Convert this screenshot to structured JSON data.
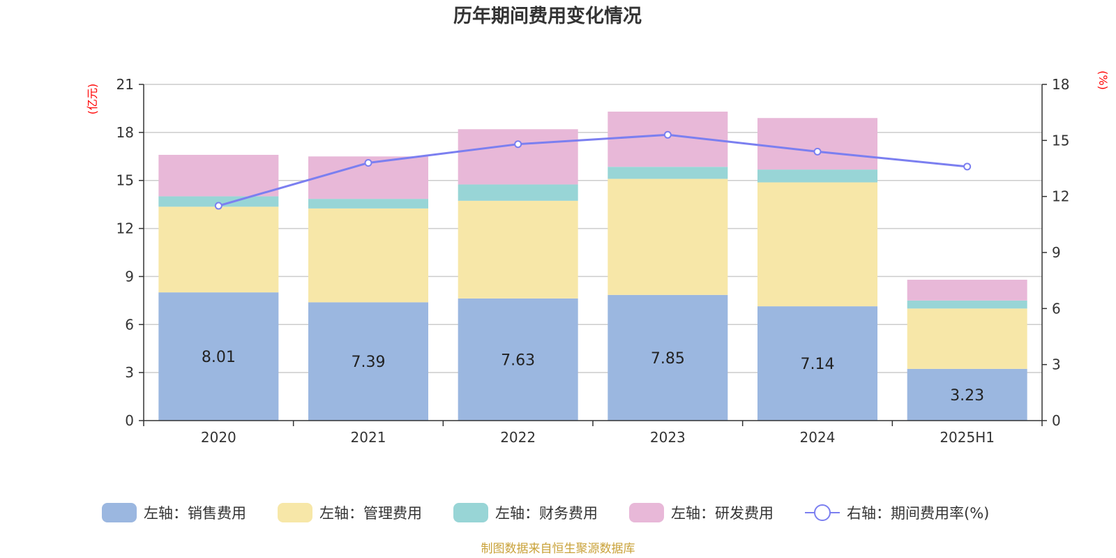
{
  "chart_data": {
    "type": "bar",
    "title": "历年期间费用变化情况",
    "categories": [
      "2020",
      "2021",
      "2022",
      "2023",
      "2024",
      "2025H1"
    ],
    "left_axis": {
      "unit": "(亿元)",
      "min": 0,
      "max": 21,
      "step": 3,
      "ticks": [
        "0",
        "3",
        "6",
        "9",
        "12",
        "15",
        "18",
        "21"
      ]
    },
    "right_axis": {
      "unit": "(%)",
      "min": 0,
      "max": 18,
      "step": 3,
      "ticks": [
        "0",
        "3",
        "6",
        "9",
        "12",
        "15",
        "18"
      ]
    },
    "series": [
      {
        "name": "左轴：销售费用",
        "type": "bar",
        "axis": "left",
        "color": "#9bb7e0",
        "values": [
          8.01,
          7.39,
          7.63,
          7.85,
          7.14,
          3.23
        ],
        "labels": [
          "8.01",
          "7.39",
          "7.63",
          "7.85",
          "7.14",
          "3.23"
        ]
      },
      {
        "name": "左轴：管理费用",
        "type": "bar",
        "axis": "left",
        "color": "#f7e7a8",
        "values": [
          5.35,
          5.86,
          6.1,
          7.25,
          7.74,
          3.77
        ]
      },
      {
        "name": "左轴：财务费用",
        "type": "bar",
        "axis": "left",
        "color": "#98d5d6",
        "values": [
          0.65,
          0.6,
          1.02,
          0.75,
          0.8,
          0.5
        ]
      },
      {
        "name": "左轴：研发费用",
        "type": "bar",
        "axis": "left",
        "color": "#e8b8d8",
        "values": [
          2.59,
          2.65,
          3.45,
          3.45,
          3.22,
          1.3
        ]
      },
      {
        "name": "右轴：期间费用率(%)",
        "type": "line",
        "axis": "right",
        "color": "#7b7ff0",
        "values": [
          11.5,
          13.8,
          14.8,
          15.3,
          14.4,
          13.6
        ]
      }
    ],
    "grid": true,
    "legend": "bottom"
  },
  "footer": {
    "source": "制图数据来自恒生聚源数据库"
  }
}
